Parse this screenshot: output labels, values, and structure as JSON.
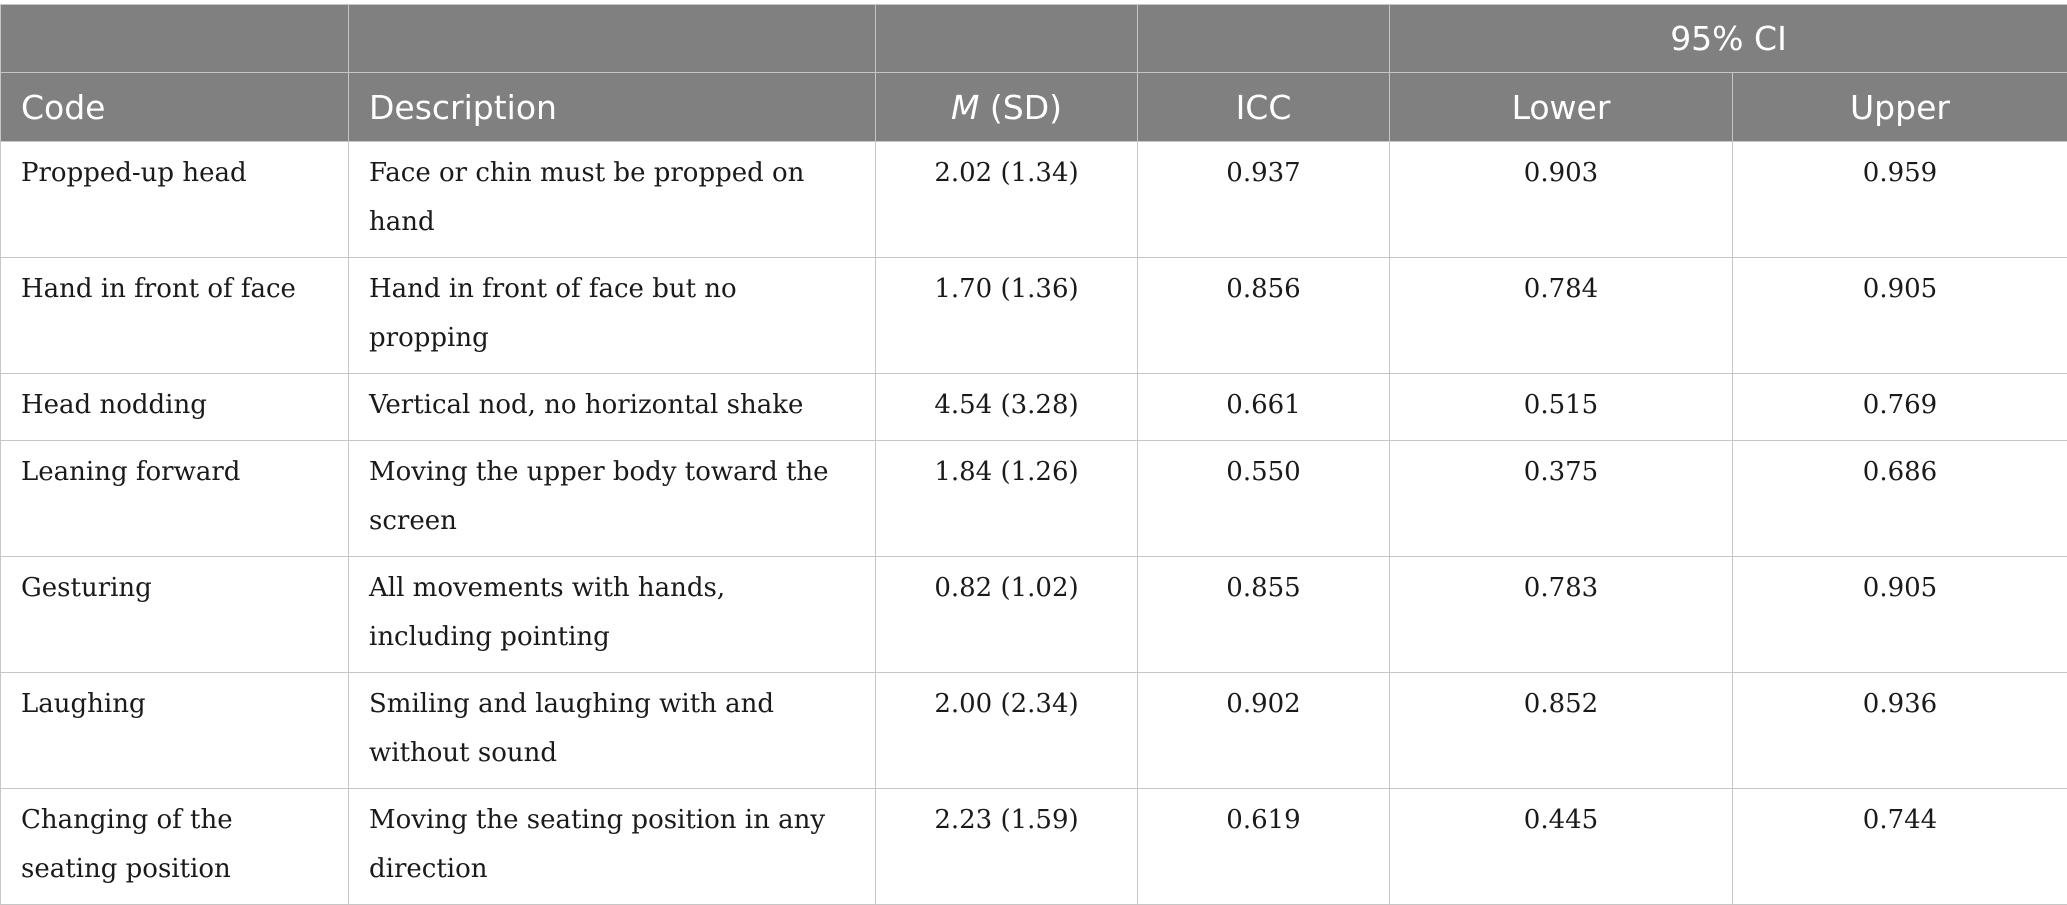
{
  "table": {
    "group_header": "95% CI",
    "columns": {
      "code": "Code",
      "description": "Description",
      "msd_m": "M",
      "msd_rest": " (SD)",
      "icc": "ICC",
      "lower": "Lower",
      "upper": "Upper"
    },
    "rows": [
      {
        "code": "Propped-up head",
        "description": "Face or chin must be propped on hand",
        "msd": "2.02 (1.34)",
        "icc": "0.937",
        "lower": "0.903",
        "upper": "0.959"
      },
      {
        "code": "Hand in front of face",
        "description": "Hand in front of face but no propping",
        "msd": "1.70 (1.36)",
        "icc": "0.856",
        "lower": "0.784",
        "upper": "0.905"
      },
      {
        "code": "Head nodding",
        "description": "Vertical nod, no horizontal shake",
        "msd": "4.54 (3.28)",
        "icc": "0.661",
        "lower": "0.515",
        "upper": "0.769"
      },
      {
        "code": "Leaning forward",
        "description": "Moving the upper body toward the screen",
        "msd": "1.84 (1.26)",
        "icc": "0.550",
        "lower": "0.375",
        "upper": "0.686"
      },
      {
        "code": "Gesturing",
        "description": "All movements with hands, including pointing",
        "msd": "0.82 (1.02)",
        "icc": "0.855",
        "lower": "0.783",
        "upper": "0.905"
      },
      {
        "code": "Laughing",
        "description": "Smiling and laughing with and without sound",
        "msd": "2.00 (2.34)",
        "icc": "0.902",
        "lower": "0.852",
        "upper": "0.936"
      },
      {
        "code": "Changing of the seating position",
        "description": "Moving the seating position in any direction",
        "msd": "2.23 (1.59)",
        "icc": "0.619",
        "lower": "0.445",
        "upper": "0.744"
      }
    ]
  }
}
